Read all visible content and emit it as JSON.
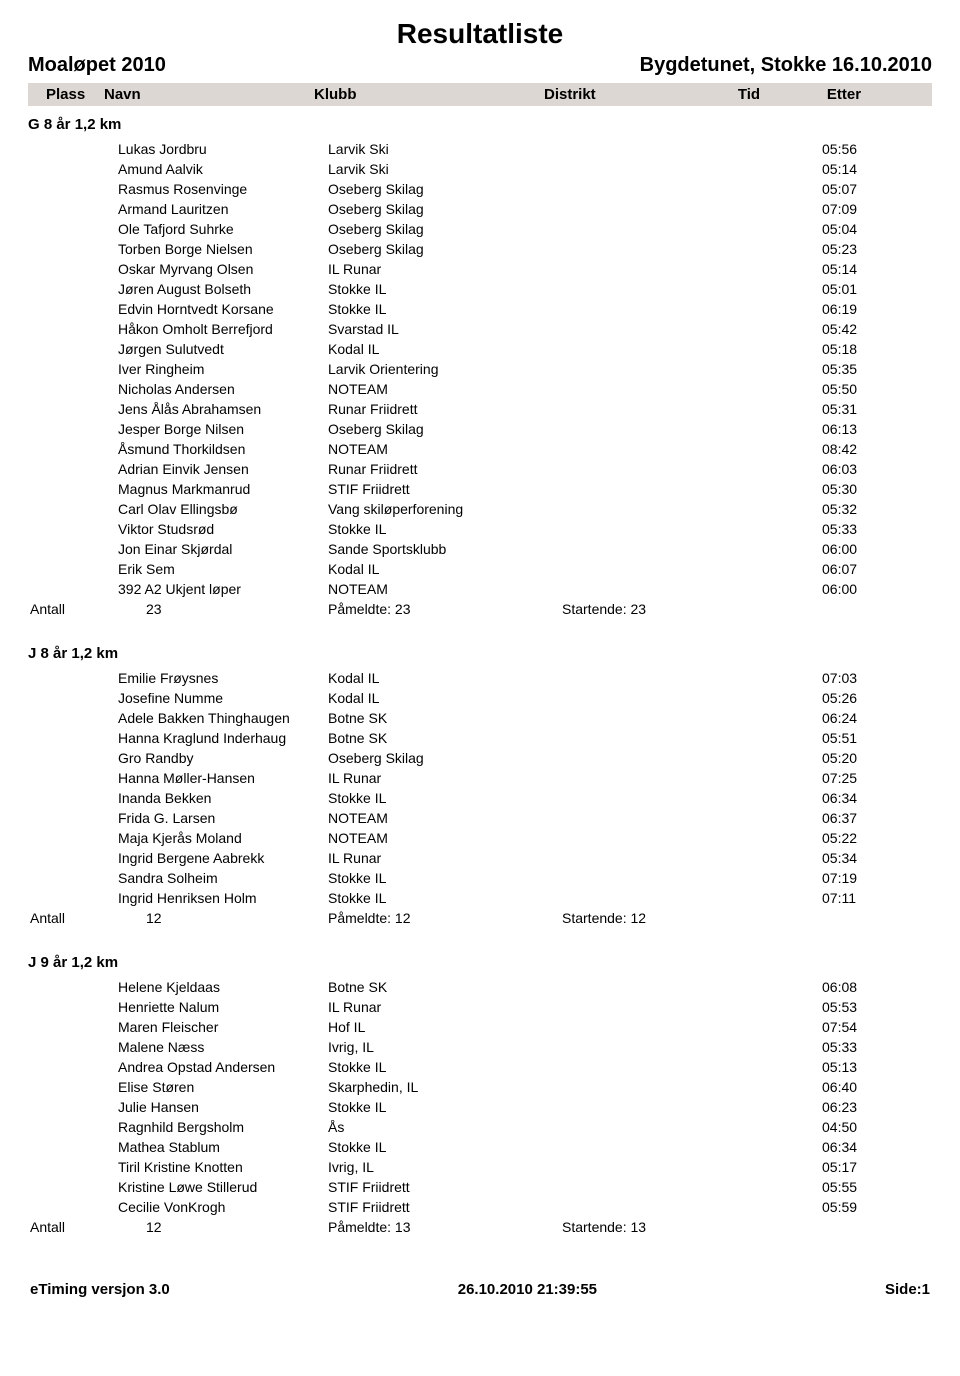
{
  "title": "Resultatliste",
  "event": "Moaløpet 2010",
  "venue": "Bygdetunet, Stokke  16.10.2010",
  "columns": {
    "plass": "Plass",
    "navn": "Navn",
    "klubb": "Klubb",
    "distrikt": "Distrikt",
    "tid": "Tid",
    "etter": "Etter"
  },
  "summary_labels": {
    "antall": "Antall",
    "pameldte": "Påmeldte:",
    "startende": "Startende:"
  },
  "groups": [
    {
      "title": "G 8 år 1,2 km",
      "rows": [
        {
          "navn": "Lukas Jordbru",
          "klubb": "Larvik Ski",
          "tid": "05:56"
        },
        {
          "navn": "Amund Aalvik",
          "klubb": "Larvik Ski",
          "tid": "05:14"
        },
        {
          "navn": "Rasmus Rosenvinge",
          "klubb": "Oseberg Skilag",
          "tid": "05:07"
        },
        {
          "navn": "Armand Lauritzen",
          "klubb": "Oseberg Skilag",
          "tid": "07:09"
        },
        {
          "navn": "Ole Tafjord Suhrke",
          "klubb": "Oseberg Skilag",
          "tid": "05:04"
        },
        {
          "navn": "Torben Borge Nielsen",
          "klubb": "Oseberg Skilag",
          "tid": "05:23"
        },
        {
          "navn": "Oskar Myrvang Olsen",
          "klubb": "IL Runar",
          "tid": "05:14"
        },
        {
          "navn": "Jøren August Bolseth",
          "klubb": "Stokke IL",
          "tid": "05:01"
        },
        {
          "navn": "Edvin Horntvedt Korsane",
          "klubb": "Stokke IL",
          "tid": "06:19"
        },
        {
          "navn": "Håkon Omholt Berrefjord",
          "klubb": "Svarstad IL",
          "tid": "05:42"
        },
        {
          "navn": "Jørgen Sulutvedt",
          "klubb": "Kodal IL",
          "tid": "05:18"
        },
        {
          "navn": "Iver Ringheim",
          "klubb": "Larvik Orientering",
          "tid": "05:35"
        },
        {
          "navn": "Nicholas Andersen",
          "klubb": "NOTEAM",
          "tid": "05:50"
        },
        {
          "navn": "Jens Ålås Abrahamsen",
          "klubb": "Runar Friidrett",
          "tid": "05:31"
        },
        {
          "navn": "Jesper Borge Nilsen",
          "klubb": "Oseberg Skilag",
          "tid": "06:13"
        },
        {
          "navn": "Åsmund Thorkildsen",
          "klubb": "NOTEAM",
          "tid": "08:42"
        },
        {
          "navn": "Adrian Einvik Jensen",
          "klubb": "Runar Friidrett",
          "tid": "06:03"
        },
        {
          "navn": "Magnus Markmanrud",
          "klubb": "STIF Friidrett",
          "tid": "05:30"
        },
        {
          "navn": "Carl Olav Ellingsbø",
          "klubb": "Vang skiløperforening",
          "tid": "05:32"
        },
        {
          "navn": "Viktor Studsrød",
          "klubb": "Stokke IL",
          "tid": "05:33"
        },
        {
          "navn": "Jon Einar Skjørdal",
          "klubb": "Sande Sportsklubb",
          "tid": "06:00"
        },
        {
          "navn": "Erik Sem",
          "klubb": "Kodal IL",
          "tid": "06:07"
        },
        {
          "navn": "392 A2 Ukjent løper",
          "klubb": "NOTEAM",
          "tid": "06:00"
        }
      ],
      "antall": "23",
      "pameldte": "23",
      "startende": "23"
    },
    {
      "title": "J 8 år 1,2 km",
      "rows": [
        {
          "navn": "Emilie Frøysnes",
          "klubb": "Kodal IL",
          "tid": "07:03"
        },
        {
          "navn": "Josefine Numme",
          "klubb": "Kodal IL",
          "tid": "05:26"
        },
        {
          "navn": "Adele Bakken Thinghaugen",
          "klubb": "Botne SK",
          "tid": "06:24"
        },
        {
          "navn": "Hanna Kraglund Inderhaug",
          "klubb": "Botne SK",
          "tid": "05:51"
        },
        {
          "navn": "Gro Randby",
          "klubb": "Oseberg Skilag",
          "tid": "05:20"
        },
        {
          "navn": "Hanna Møller-Hansen",
          "klubb": "IL Runar",
          "tid": "07:25"
        },
        {
          "navn": "Inanda Bekken",
          "klubb": "Stokke IL",
          "tid": "06:34"
        },
        {
          "navn": "Frida G. Larsen",
          "klubb": "NOTEAM",
          "tid": "06:37"
        },
        {
          "navn": "Maja Kjerås Moland",
          "klubb": "NOTEAM",
          "tid": "05:22"
        },
        {
          "navn": "Ingrid Bergene Aabrekk",
          "klubb": "IL Runar",
          "tid": "05:34"
        },
        {
          "navn": "Sandra Solheim",
          "klubb": "Stokke IL",
          "tid": "07:19"
        },
        {
          "navn": "Ingrid Henriksen Holm",
          "klubb": "Stokke IL",
          "tid": "07:11"
        }
      ],
      "antall": "12",
      "pameldte": "12",
      "startende": "12"
    },
    {
      "title": "J 9 år 1,2 km",
      "rows": [
        {
          "navn": "Helene Kjeldaas",
          "klubb": "Botne SK",
          "tid": "06:08"
        },
        {
          "navn": "Henriette Nalum",
          "klubb": "IL Runar",
          "tid": "05:53"
        },
        {
          "navn": "Maren Fleischer",
          "klubb": "Hof IL",
          "tid": "07:54"
        },
        {
          "navn": "Malene Næss",
          "klubb": "Ivrig, IL",
          "tid": "05:33"
        },
        {
          "navn": "Andrea Opstad Andersen",
          "klubb": "Stokke IL",
          "tid": "05:13"
        },
        {
          "navn": "Elise Støren",
          "klubb": "Skarphedin, IL",
          "tid": "06:40"
        },
        {
          "navn": "Julie Hansen",
          "klubb": "Stokke IL",
          "tid": "06:23"
        },
        {
          "navn": "Ragnhild Bergsholm",
          "klubb": "Ås",
          "tid": "04:50"
        },
        {
          "navn": "Mathea Stablum",
          "klubb": "Stokke IL",
          "tid": "06:34"
        },
        {
          "navn": "Tiril Kristine Knotten",
          "klubb": "Ivrig, IL",
          "tid": "05:17"
        },
        {
          "navn": "Kristine Løwe Stillerud",
          "klubb": "STIF Friidrett",
          "tid": "05:55"
        },
        {
          "navn": "Cecilie VonKrogh",
          "klubb": "STIF Friidrett",
          "tid": "05:59"
        }
      ],
      "antall": "12",
      "pameldte": "13",
      "startende": "13"
    }
  ],
  "footer": {
    "left": "eTiming versjon 3.0",
    "center": "26.10.2010 21:39:55",
    "right": "Side:1"
  }
}
